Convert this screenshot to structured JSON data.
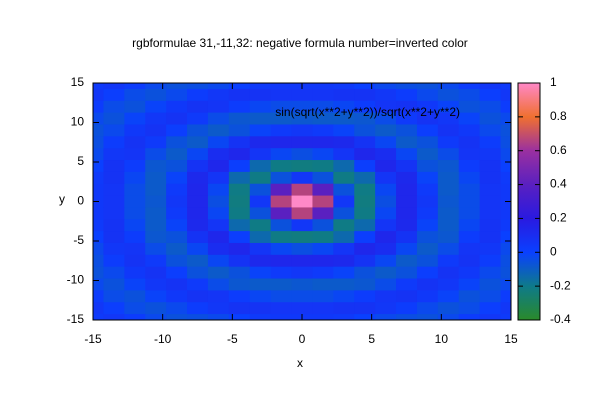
{
  "chart_data": {
    "type": "heatmap",
    "title": "rgbformulae 31,-11,32: negative formula number=inverted color",
    "series_name": "sin(sqrt(x**2+y**2))/sqrt(x**2+y**2)",
    "x_label": "x",
    "y_label": "y",
    "xlim": [
      -15,
      15
    ],
    "ylim": [
      -15,
      15
    ],
    "xticks": [
      -15,
      -10,
      -5,
      0,
      5,
      10,
      15
    ],
    "yticks": [
      -15,
      -10,
      -5,
      0,
      5,
      10,
      15
    ],
    "cblim": [
      -0.4,
      1
    ],
    "cbticks": [
      -0.4,
      -0.2,
      0,
      0.2,
      0.4,
      0.6,
      0.8,
      1
    ],
    "colormap": [
      "#2a8a2a",
      "#0e7a8a",
      "#0a40ff",
      "#2a1ae0",
      "#5a20c0",
      "#9a30a0",
      "#f07030",
      "#ff88c8"
    ],
    "x": [
      -15,
      -13.5,
      -12,
      -10.5,
      -9,
      -7.5,
      -6,
      -4.5,
      -3,
      -1.5,
      0,
      1.5,
      3,
      4.5,
      6,
      7.5,
      9,
      10.5,
      12,
      13.5,
      15
    ],
    "y": [
      15,
      13.5,
      12,
      10.5,
      9,
      7.5,
      6,
      4.5,
      3,
      1.5,
      0,
      -1.5,
      -3,
      -4.5,
      -6,
      -7.5,
      -9,
      -10.5,
      -12,
      -13.5,
      -15
    ],
    "z": [
      [
        0.03,
        0.05,
        0.02,
        -0.03,
        -0.06,
        -0.05,
        -0.03,
        0,
        0.03,
        0.04,
        0.04,
        0.04,
        0.03,
        0,
        -0.03,
        -0.05,
        -0.06,
        -0.03,
        0.02,
        0.05,
        0.03
      ],
      [
        0.05,
        0.01,
        -0.04,
        -0.06,
        -0.03,
        0.02,
        0.05,
        0.07,
        0.07,
        0.06,
        0.06,
        0.06,
        0.07,
        0.07,
        0.05,
        0.02,
        -0.03,
        -0.06,
        -0.04,
        0.01,
        0.05
      ],
      [
        0.02,
        -0.04,
        -0.06,
        -0.01,
        0.04,
        0.07,
        0.06,
        0.02,
        -0.02,
        -0.04,
        -0.04,
        -0.04,
        -0.02,
        0.02,
        0.06,
        0.07,
        0.04,
        -0.01,
        -0.06,
        -0.04,
        0.02
      ],
      [
        -0.03,
        -0.06,
        -0.01,
        0.05,
        0.07,
        0.03,
        -0.04,
        -0.08,
        -0.09,
        -0.09,
        -0.08,
        -0.09,
        -0.09,
        -0.08,
        -0.04,
        0.03,
        0.07,
        0.05,
        -0.01,
        -0.06,
        -0.03
      ],
      [
        -0.06,
        -0.03,
        0.04,
        0.07,
        0.01,
        -0.06,
        -0.09,
        -0.06,
        -0.01,
        0.03,
        0.05,
        0.03,
        -0.01,
        -0.06,
        -0.09,
        -0.06,
        0.01,
        0.07,
        0.04,
        -0.03,
        -0.06
      ],
      [
        -0.05,
        0.02,
        0.07,
        0.03,
        -0.06,
        -0.09,
        -0.02,
        0.07,
        0.12,
        0.13,
        0.13,
        0.13,
        0.12,
        0.07,
        -0.02,
        -0.09,
        -0.06,
        0.03,
        0.07,
        0.02,
        -0.05
      ],
      [
        -0.03,
        0.05,
        0.06,
        -0.04,
        -0.09,
        -0.02,
        0.1,
        0.13,
        0.06,
        -0.02,
        -0.05,
        -0.02,
        0.06,
        0.13,
        0.1,
        -0.02,
        -0.09,
        -0.04,
        0.06,
        0.05,
        -0.03
      ],
      [
        0,
        0.07,
        0.02,
        -0.08,
        -0.06,
        0.07,
        0.13,
        0.01,
        -0.14,
        -0.21,
        -0.22,
        -0.21,
        -0.14,
        0.01,
        0.13,
        0.07,
        -0.06,
        -0.08,
        0.02,
        0.07,
        0
      ],
      [
        0.03,
        0.07,
        -0.02,
        -0.09,
        -0.01,
        0.12,
        0.06,
        -0.14,
        -0.21,
        -0.06,
        0.05,
        -0.06,
        -0.21,
        -0.14,
        0.06,
        0.12,
        -0.01,
        -0.09,
        -0.02,
        0.07,
        0.03
      ],
      [
        0.04,
        0.06,
        -0.04,
        -0.09,
        0.03,
        0.13,
        -0.02,
        -0.21,
        -0.06,
        0.4,
        0.66,
        0.4,
        -0.06,
        -0.21,
        -0.02,
        0.13,
        0.03,
        -0.09,
        -0.04,
        0.06,
        0.04
      ],
      [
        0.04,
        0.06,
        -0.04,
        -0.08,
        0.05,
        0.13,
        -0.05,
        -0.22,
        0.05,
        0.66,
        1,
        0.66,
        0.05,
        -0.22,
        -0.05,
        0.13,
        0.05,
        -0.08,
        -0.04,
        0.06,
        0.04
      ],
      [
        0.04,
        0.06,
        -0.04,
        -0.09,
        0.03,
        0.13,
        -0.02,
        -0.21,
        -0.06,
        0.4,
        0.66,
        0.4,
        -0.06,
        -0.21,
        -0.02,
        0.13,
        0.03,
        -0.09,
        -0.04,
        0.06,
        0.04
      ],
      [
        0.03,
        0.07,
        -0.02,
        -0.09,
        -0.01,
        0.12,
        0.06,
        -0.14,
        -0.21,
        -0.06,
        0.05,
        -0.06,
        -0.21,
        -0.14,
        0.06,
        0.12,
        -0.01,
        -0.09,
        -0.02,
        0.07,
        0.03
      ],
      [
        0,
        0.07,
        0.02,
        -0.08,
        -0.06,
        0.07,
        0.13,
        0.01,
        -0.14,
        -0.21,
        -0.22,
        -0.21,
        -0.14,
        0.01,
        0.13,
        0.07,
        -0.06,
        -0.08,
        0.02,
        0.07,
        0
      ],
      [
        -0.03,
        0.05,
        0.06,
        -0.04,
        -0.09,
        -0.02,
        0.1,
        0.13,
        0.06,
        -0.02,
        -0.05,
        -0.02,
        0.06,
        0.13,
        0.1,
        -0.02,
        -0.09,
        -0.04,
        0.06,
        0.05,
        -0.03
      ],
      [
        -0.05,
        0.02,
        0.07,
        0.03,
        -0.06,
        -0.09,
        -0.02,
        0.07,
        0.12,
        0.13,
        0.13,
        0.13,
        0.12,
        0.07,
        -0.02,
        -0.09,
        -0.06,
        0.03,
        0.07,
        0.02,
        -0.05
      ],
      [
        -0.06,
        -0.03,
        0.04,
        0.07,
        0.01,
        -0.06,
        -0.09,
        -0.06,
        -0.01,
        0.03,
        0.05,
        0.03,
        -0.01,
        -0.06,
        -0.09,
        -0.06,
        0.01,
        0.07,
        0.04,
        -0.03,
        -0.06
      ],
      [
        -0.03,
        -0.06,
        -0.01,
        0.05,
        0.07,
        0.03,
        -0.04,
        -0.08,
        -0.09,
        -0.09,
        -0.08,
        -0.09,
        -0.09,
        -0.08,
        -0.04,
        0.03,
        0.07,
        0.05,
        -0.01,
        -0.06,
        -0.03
      ],
      [
        0.02,
        -0.04,
        -0.06,
        -0.01,
        0.04,
        0.07,
        0.06,
        0.02,
        -0.02,
        -0.04,
        -0.04,
        -0.04,
        -0.02,
        0.02,
        0.06,
        0.07,
        0.04,
        -0.01,
        -0.06,
        -0.04,
        0.02
      ],
      [
        0.05,
        0.01,
        -0.04,
        -0.06,
        -0.03,
        0.02,
        0.05,
        0.07,
        0.07,
        0.06,
        0.06,
        0.06,
        0.07,
        0.07,
        0.05,
        0.02,
        -0.03,
        -0.06,
        -0.04,
        0.01,
        0.05
      ],
      [
        0.03,
        0.05,
        0.02,
        -0.03,
        -0.06,
        -0.05,
        -0.03,
        0,
        0.03,
        0.04,
        0.04,
        0.04,
        0.03,
        0,
        -0.03,
        -0.05,
        -0.06,
        -0.03,
        0.02,
        0.05,
        0.03
      ]
    ]
  }
}
